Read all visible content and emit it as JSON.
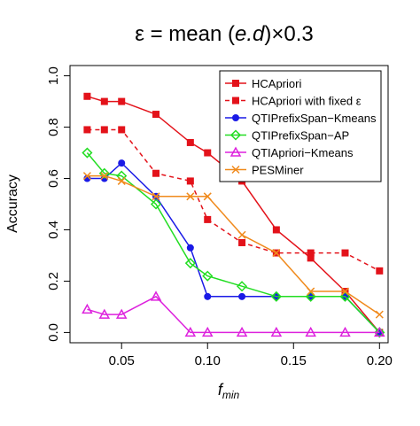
{
  "chart_data": {
    "type": "line",
    "title": "ε = mean (e.d)×0.3",
    "title_parts": {
      "prefix": "ε = mean (",
      "italic": "e.d",
      "suffix": ")×0.3"
    },
    "xlabel": {
      "base": "f",
      "sub": "min"
    },
    "ylabel": "Accuracy",
    "xlim": [
      0.02,
      0.205
    ],
    "ylim": [
      -0.04,
      1.04
    ],
    "x_ticks": [
      0.05,
      0.1,
      0.15,
      0.2
    ],
    "x_tick_labels": [
      "0.05",
      "0.10",
      "0.15",
      "0.20"
    ],
    "y_ticks": [
      0.0,
      0.2,
      0.4,
      0.6,
      0.8,
      1.0
    ],
    "y_tick_labels": [
      "0.0",
      "0.2",
      "0.4",
      "0.6",
      "0.8",
      "1.0"
    ],
    "grid": false,
    "legend_position": "top-right",
    "series": [
      {
        "name": "HCApriori",
        "color": "#e3121a",
        "line": "solid",
        "marker": "square-filled",
        "x": [
          0.03,
          0.04,
          0.05,
          0.07,
          0.09,
          0.1,
          0.12,
          0.14,
          0.16,
          0.18,
          0.2
        ],
        "y": [
          0.92,
          0.9,
          0.9,
          0.85,
          0.74,
          0.7,
          0.59,
          0.4,
          0.29,
          0.16,
          0.0
        ]
      },
      {
        "name": "HCApriori with fixed ε",
        "color": "#e3121a",
        "line": "dashed",
        "marker": "square-filled",
        "x": [
          0.03,
          0.04,
          0.05,
          0.07,
          0.09,
          0.1,
          0.12,
          0.14,
          0.16,
          0.18,
          0.2
        ],
        "y": [
          0.79,
          0.79,
          0.79,
          0.62,
          0.59,
          0.44,
          0.35,
          0.31,
          0.31,
          0.31,
          0.24
        ]
      },
      {
        "name": "QTIPrefixSpan−Kmeans",
        "color": "#1a1ae6",
        "line": "solid",
        "marker": "circle-filled",
        "x": [
          0.03,
          0.04,
          0.05,
          0.07,
          0.09,
          0.1,
          0.12,
          0.14,
          0.16,
          0.18,
          0.2
        ],
        "y": [
          0.6,
          0.6,
          0.66,
          0.53,
          0.33,
          0.14,
          0.14,
          0.14,
          0.14,
          0.14,
          0.0
        ]
      },
      {
        "name": "QTIPrefixSpan−AP",
        "color": "#22dd22",
        "line": "solid",
        "marker": "diamond-open",
        "x": [
          0.03,
          0.04,
          0.05,
          0.07,
          0.09,
          0.1,
          0.12,
          0.14,
          0.16,
          0.18,
          0.2
        ],
        "y": [
          0.7,
          0.62,
          0.61,
          0.5,
          0.27,
          0.22,
          0.18,
          0.14,
          0.14,
          0.14,
          0.0
        ]
      },
      {
        "name": "QTIApriori−Kmeans",
        "color": "#dd22dd",
        "line": "solid",
        "marker": "triangle-open",
        "x": [
          0.03,
          0.04,
          0.05,
          0.07,
          0.09,
          0.1,
          0.12,
          0.14,
          0.16,
          0.18,
          0.2
        ],
        "y": [
          0.09,
          0.07,
          0.07,
          0.14,
          0.0,
          0.0,
          0.0,
          0.0,
          0.0,
          0.0,
          0.0
        ]
      },
      {
        "name": "PESMiner",
        "color": "#f08a1c",
        "line": "solid",
        "marker": "cross",
        "x": [
          0.03,
          0.04,
          0.05,
          0.07,
          0.09,
          0.1,
          0.12,
          0.14,
          0.16,
          0.18,
          0.2
        ],
        "y": [
          0.61,
          0.61,
          0.59,
          0.53,
          0.53,
          0.53,
          0.38,
          0.31,
          0.16,
          0.16,
          0.07
        ]
      }
    ]
  }
}
